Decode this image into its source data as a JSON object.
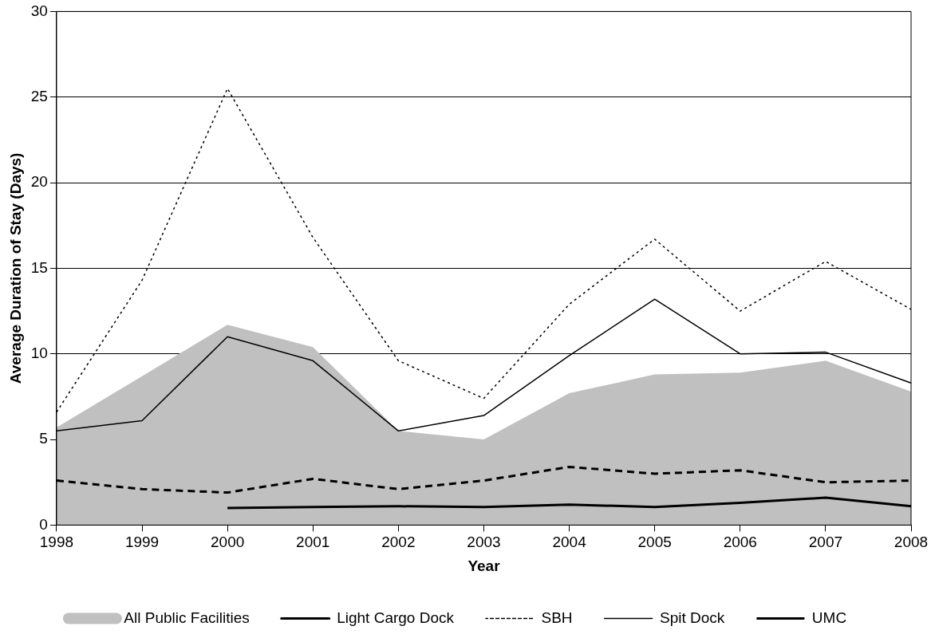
{
  "chart_data": {
    "type": "line",
    "xlabel": "Year",
    "ylabel": "Average Duration of Stay (Days)",
    "categories": [
      "1998",
      "1999",
      "2000",
      "2001",
      "2002",
      "2003",
      "2004",
      "2005",
      "2006",
      "2007",
      "2008"
    ],
    "series": [
      {
        "name": "All Public Facilities",
        "type": "area",
        "color": "#c0c0c0",
        "values": [
          5.7,
          8.7,
          11.7,
          10.4,
          5.5,
          5.0,
          7.7,
          8.8,
          8.9,
          9.6,
          7.8
        ]
      },
      {
        "name": "Light Cargo Dock",
        "color": "#000000",
        "line_style": "solid",
        "values": [
          null,
          null,
          1.0,
          1.05,
          1.1,
          1.05,
          1.2,
          1.05,
          1.3,
          1.6,
          1.1
        ]
      },
      {
        "name": "SBH",
        "color": "#000000",
        "line_style": "dotted",
        "values": [
          6.6,
          14.3,
          25.5,
          16.8,
          9.6,
          7.4,
          12.9,
          16.7,
          12.5,
          15.4,
          12.6
        ]
      },
      {
        "name": "Spit Dock",
        "color": "#000000",
        "line_style": "solid",
        "values": [
          5.5,
          6.1,
          11.0,
          9.6,
          5.5,
          6.4,
          9.9,
          13.2,
          10.0,
          10.1,
          8.3
        ]
      },
      {
        "name": "UMC",
        "color": "#000000",
        "line_style": "dashed",
        "values": [
          2.6,
          2.1,
          1.9,
          2.7,
          2.1,
          2.6,
          3.4,
          3.0,
          3.2,
          2.5,
          2.6
        ]
      }
    ],
    "ylim": [
      0,
      30
    ],
    "yticks": [
      0,
      5,
      10,
      15,
      20,
      25,
      30
    ],
    "grid": "y",
    "legend": "bottom",
    "marker": "none"
  }
}
